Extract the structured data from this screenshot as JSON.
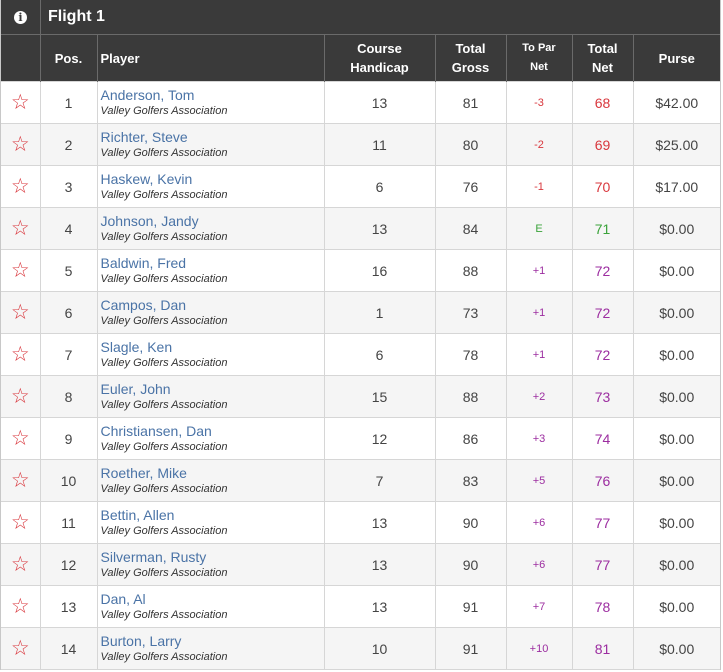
{
  "flight": {
    "title": "Flight 1"
  },
  "icons": {
    "info": "info-icon",
    "favorite": "star-outline-icon"
  },
  "colors": {
    "header_bg": "#3a3a3a",
    "under_par": "#d9373d",
    "even_par": "#3aa33a",
    "over_par": "#9c2da0",
    "player_link": "#4a73a6"
  },
  "columns": {
    "pos": "Pos.",
    "player": "Player",
    "handicap_1": "Course",
    "handicap_2": "Handicap",
    "gross_1": "Total",
    "gross_2": "Gross",
    "topar_1": "To Par",
    "topar_2": "Net",
    "net_1": "Total",
    "net_2": "Net",
    "purse": "Purse"
  },
  "rows": [
    {
      "pos": "1",
      "name": "Anderson, Tom",
      "club": "Valley Golfers Association",
      "handicap": "13",
      "gross": "81",
      "topar": "-3",
      "net": "68",
      "purse": "$42.00",
      "status": "under"
    },
    {
      "pos": "2",
      "name": "Richter, Steve",
      "club": "Valley Golfers Association",
      "handicap": "11",
      "gross": "80",
      "topar": "-2",
      "net": "69",
      "purse": "$25.00",
      "status": "under"
    },
    {
      "pos": "3",
      "name": "Haskew, Kevin",
      "club": "Valley Golfers Association",
      "handicap": "6",
      "gross": "76",
      "topar": "-1",
      "net": "70",
      "purse": "$17.00",
      "status": "under"
    },
    {
      "pos": "4",
      "name": "Johnson, Jandy",
      "club": "Valley Golfers Association",
      "handicap": "13",
      "gross": "84",
      "topar": "E",
      "net": "71",
      "purse": "$0.00",
      "status": "even"
    },
    {
      "pos": "5",
      "name": "Baldwin, Fred",
      "club": "Valley Golfers Association",
      "handicap": "16",
      "gross": "88",
      "topar": "+1",
      "net": "72",
      "purse": "$0.00",
      "status": "over"
    },
    {
      "pos": "6",
      "name": "Campos, Dan",
      "club": "Valley Golfers Association",
      "handicap": "1",
      "gross": "73",
      "topar": "+1",
      "net": "72",
      "purse": "$0.00",
      "status": "over"
    },
    {
      "pos": "7",
      "name": "Slagle, Ken",
      "club": "Valley Golfers Association",
      "handicap": "6",
      "gross": "78",
      "topar": "+1",
      "net": "72",
      "purse": "$0.00",
      "status": "over"
    },
    {
      "pos": "8",
      "name": "Euler, John",
      "club": "Valley Golfers Association",
      "handicap": "15",
      "gross": "88",
      "topar": "+2",
      "net": "73",
      "purse": "$0.00",
      "status": "over"
    },
    {
      "pos": "9",
      "name": "Christiansen, Dan",
      "club": "Valley Golfers Association",
      "handicap": "12",
      "gross": "86",
      "topar": "+3",
      "net": "74",
      "purse": "$0.00",
      "status": "over"
    },
    {
      "pos": "10",
      "name": "Roether, Mike",
      "club": "Valley Golfers Association",
      "handicap": "7",
      "gross": "83",
      "topar": "+5",
      "net": "76",
      "purse": "$0.00",
      "status": "over"
    },
    {
      "pos": "11",
      "name": "Bettin, Allen",
      "club": "Valley Golfers Association",
      "handicap": "13",
      "gross": "90",
      "topar": "+6",
      "net": "77",
      "purse": "$0.00",
      "status": "over"
    },
    {
      "pos": "12",
      "name": "Silverman, Rusty",
      "club": "Valley Golfers Association",
      "handicap": "13",
      "gross": "90",
      "topar": "+6",
      "net": "77",
      "purse": "$0.00",
      "status": "over"
    },
    {
      "pos": "13",
      "name": "Dan, Al",
      "club": "Valley Golfers Association",
      "handicap": "13",
      "gross": "91",
      "topar": "+7",
      "net": "78",
      "purse": "$0.00",
      "status": "over"
    },
    {
      "pos": "14",
      "name": "Burton, Larry",
      "club": "Valley Golfers Association",
      "handicap": "10",
      "gross": "91",
      "topar": "+10",
      "net": "81",
      "purse": "$0.00",
      "status": "over"
    }
  ]
}
